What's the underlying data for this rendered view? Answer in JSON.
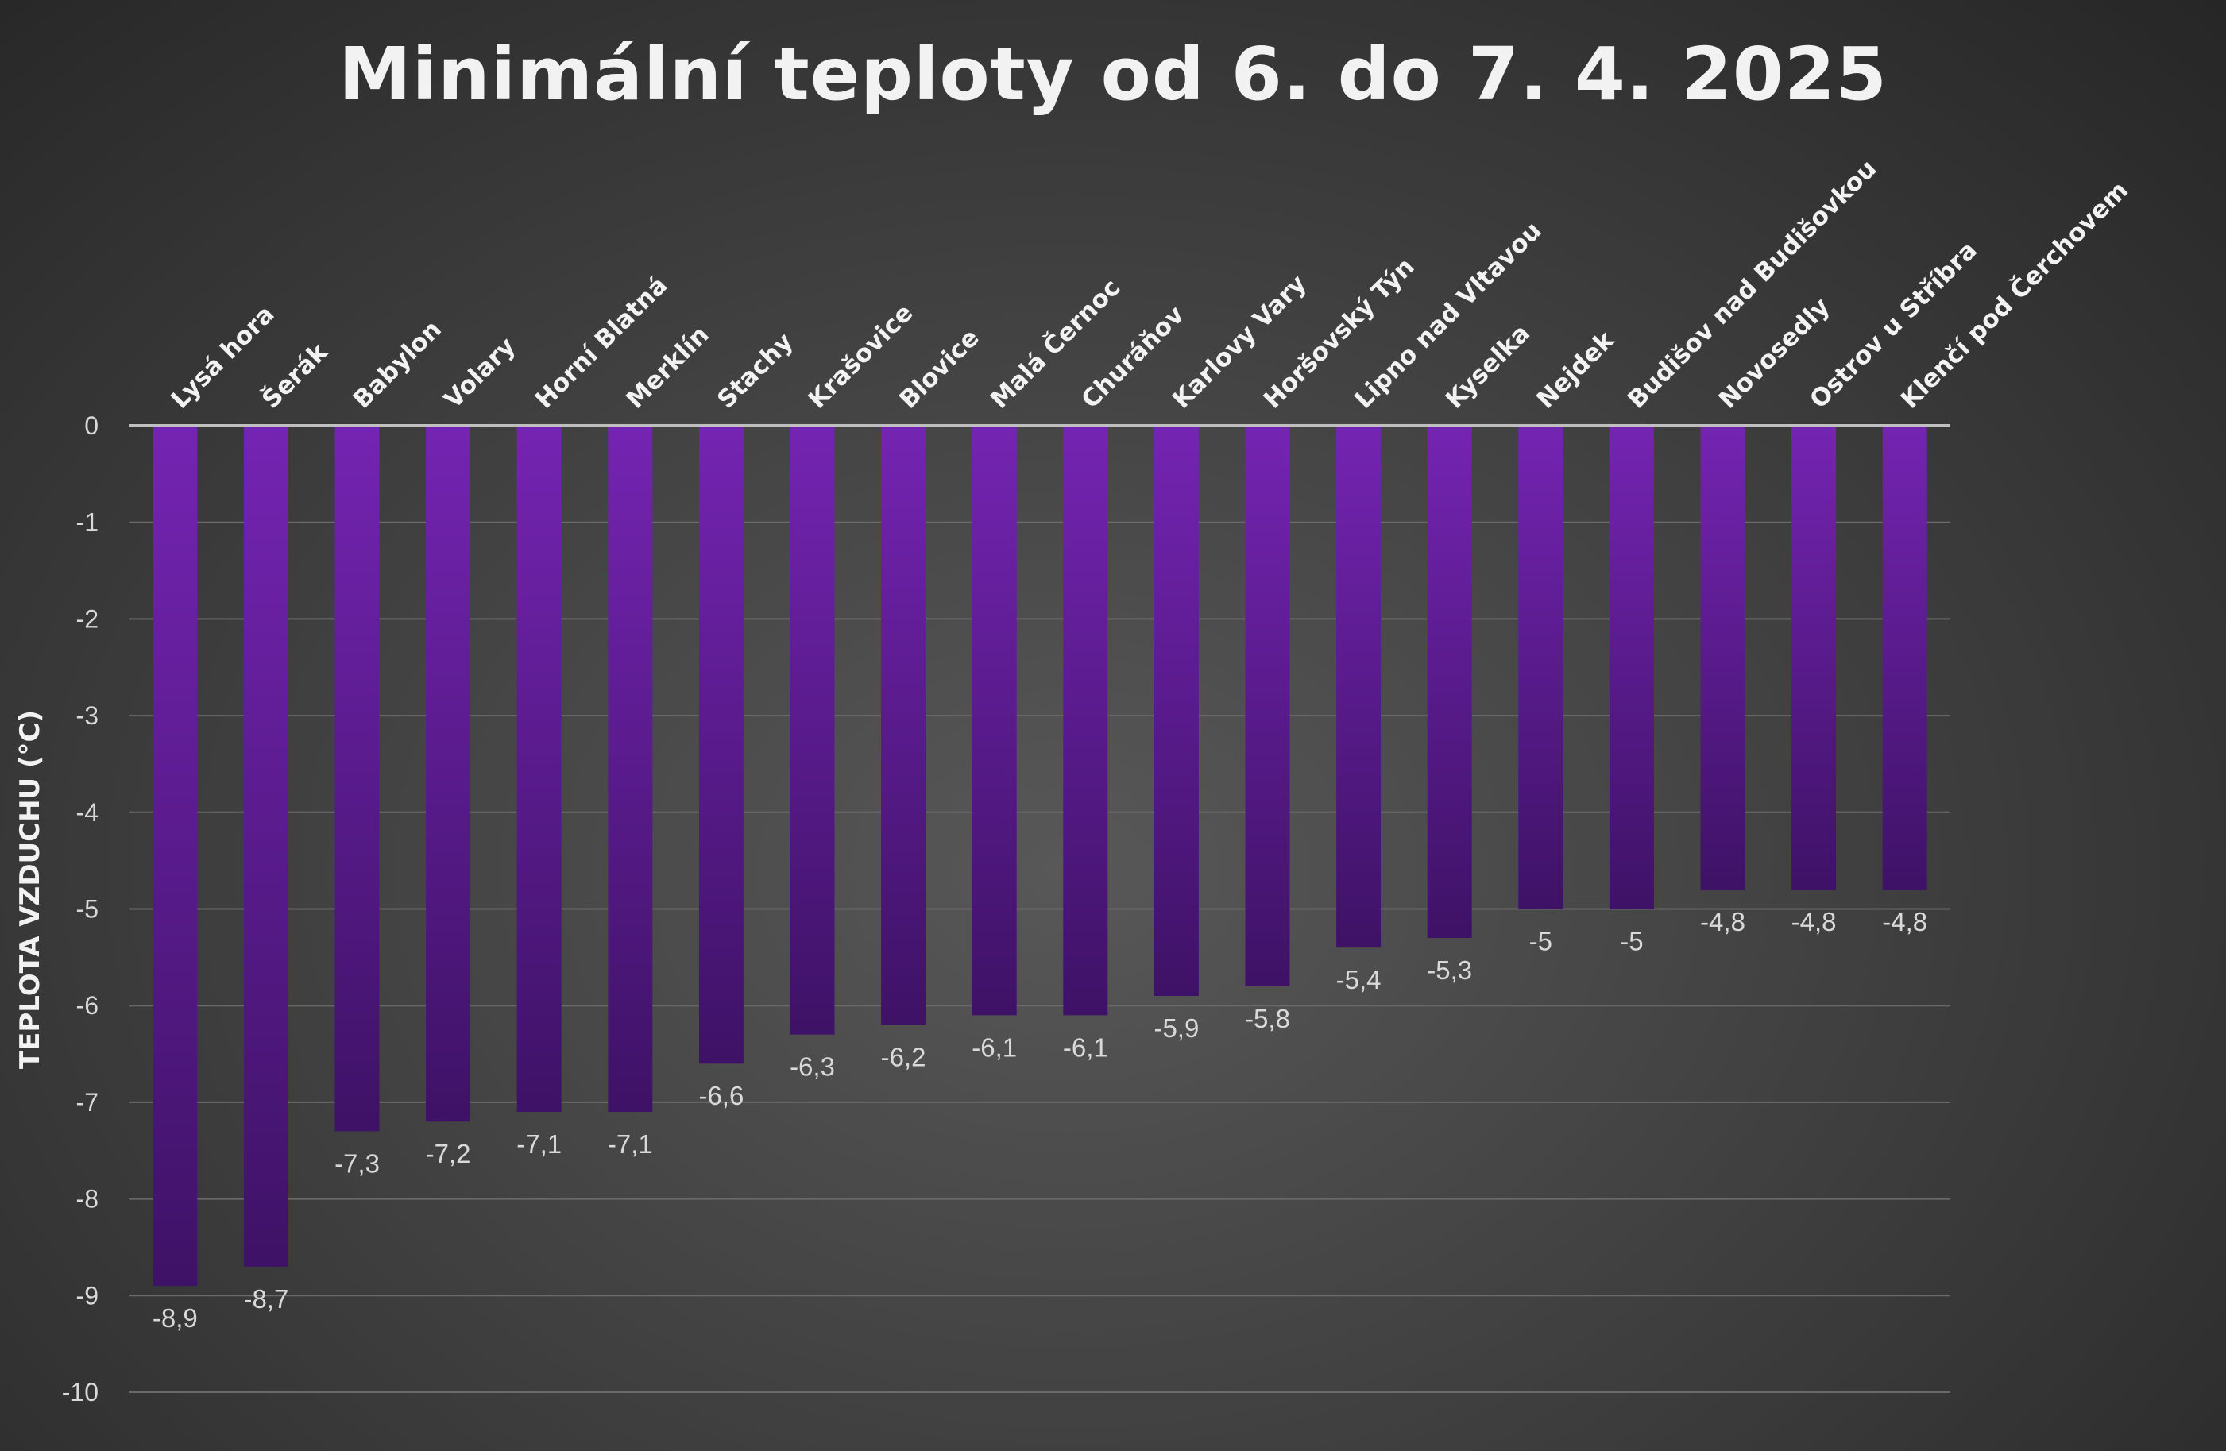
{
  "chart_data": {
    "type": "bar",
    "title": "Minimální teploty od 6. do 7. 4. 2025",
    "xlabel": "",
    "ylabel": "TEPLOTA VZDUCHU (°C)",
    "ylim": [
      -10,
      0
    ],
    "yticks": [
      "0",
      "-1",
      "-2",
      "-3",
      "-4",
      "-5",
      "-6",
      "-7",
      "-8",
      "-9",
      "-10"
    ],
    "grid": true,
    "categories": [
      "Lysá hora",
      "Šerák",
      "Babylon",
      "Volary",
      "Horní Blatná",
      "Merklín",
      "Stachy",
      "Krašovice",
      "Blovice",
      "Malá Černoc",
      "Churáňov",
      "Karlovy Vary",
      "Horšovský Týn",
      "Lipno nad Vltavou",
      "Kyselka",
      "Nejdek",
      "Budišov nad Budišovkou",
      "Novosedly",
      "Ostrov u Stříbra",
      "Klenčí pod Čerchovem"
    ],
    "values": [
      -8.9,
      -8.7,
      -7.3,
      -7.2,
      -7.1,
      -7.1,
      -6.6,
      -6.3,
      -6.2,
      -6.1,
      -6.1,
      -5.9,
      -5.8,
      -5.4,
      -5.3,
      -5,
      -5,
      -4.8,
      -4.8,
      -4.8
    ],
    "value_labels": [
      "-8,9",
      "-8,7",
      "-7,3",
      "-7,2",
      "-7,1",
      "-7,1",
      "-6,6",
      "-6,3",
      "-6,2",
      "-6,1",
      "-6,1",
      "-5,9",
      "-5,8",
      "-5,4",
      "-5,3",
      "-5",
      "-5",
      "-4,8",
      "-4,8",
      "-4,8"
    ],
    "colors": {
      "bar_top": "#7424b2",
      "bar_bottom": "#3e1266",
      "text": "#f2f2f2",
      "tick_text": "#d9d9d9",
      "grid": "#6a6a6a",
      "zero_line": "#bfbfbf"
    }
  }
}
